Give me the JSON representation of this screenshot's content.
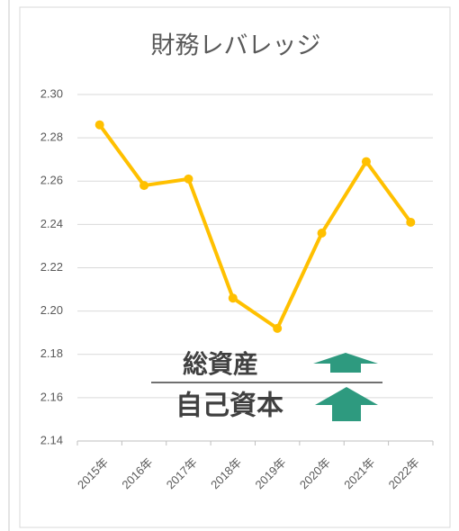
{
  "chart_data": {
    "type": "line",
    "title": "財務レバレッジ",
    "categories": [
      "2015年",
      "2016年",
      "2017年",
      "2018年",
      "2019年",
      "2020年",
      "2021年",
      "2022年"
    ],
    "series": [
      {
        "name": "財務レバレッジ",
        "color": "#ffc000",
        "values": [
          2.286,
          2.258,
          2.261,
          2.206,
          2.192,
          2.236,
          2.269,
          2.241
        ]
      }
    ],
    "ylim": [
      2.14,
      2.3
    ],
    "yticks": [
      2.14,
      2.16,
      2.18,
      {
        "value": 2.2,
        "label": "2.20"
      },
      2.22,
      2.24,
      2.26,
      2.28,
      {
        "value": 2.3,
        "label": "2.30"
      }
    ],
    "grid": true,
    "annotations": {
      "numerator": "総資産",
      "denominator": "自己資本"
    }
  }
}
